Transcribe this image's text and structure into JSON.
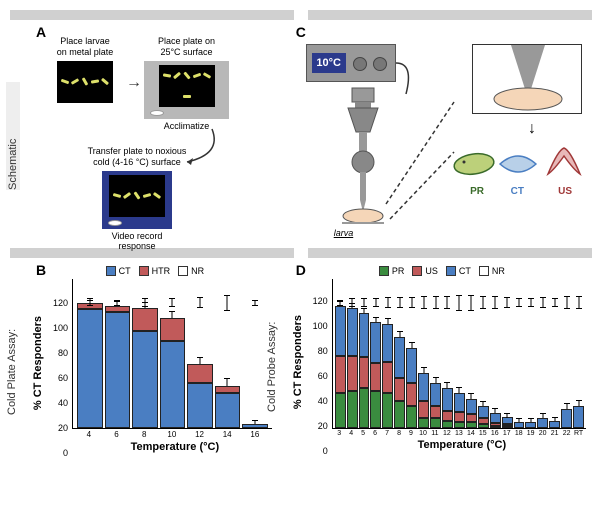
{
  "labels": {
    "schematic": "Schematic",
    "cold_plate_assay": "Cold Plate Assay:",
    "cold_probe_assay": "Cold Probe Assay:"
  },
  "panel_a": {
    "label": "A",
    "step1": "Place larvae\non metal plate",
    "step2": "Place plate on\n25°C surface",
    "acclimatize": "Acclimatize",
    "step3": "Transfer plate to noxious\ncold (4-16 °C) surface",
    "record": "Video record\nresponse"
  },
  "panel_c": {
    "label": "C",
    "display": "10°C",
    "larva_label": "larva",
    "pr": "PR",
    "ct": "CT",
    "us": "US"
  },
  "chart_b": {
    "label": "B",
    "legend": [
      {
        "name": "CT",
        "color": "#4a7ec2"
      },
      {
        "name": "HTR",
        "color": "#c15a5a"
      },
      {
        "name": "NR",
        "color": "#ffffff"
      }
    ],
    "y_label": "% CT Responders",
    "x_label": "Temperature (°C)",
    "ymax": 120,
    "yticks": [
      0,
      20,
      40,
      60,
      80,
      100,
      120
    ],
    "categories": [
      "4",
      "6",
      "8",
      "10",
      "12",
      "14",
      "16"
    ],
    "series": {
      "ct": [
        95,
        93,
        78,
        70,
        36,
        28,
        3
      ],
      "htr": [
        5,
        5,
        18,
        18,
        15,
        6,
        0
      ]
    },
    "err": [
      3,
      3,
      4,
      5,
      5,
      5,
      3
    ],
    "total_err_top": [
      100,
      100,
      100,
      100,
      100,
      100,
      100
    ],
    "total_err_v": [
      2,
      2,
      3,
      3,
      4,
      6,
      2
    ]
  },
  "chart_d": {
    "label": "D",
    "legend": [
      {
        "name": "PR",
        "color": "#3a8c3f"
      },
      {
        "name": "US",
        "color": "#c15a5a"
      },
      {
        "name": "CT",
        "color": "#4a7ec2"
      },
      {
        "name": "NR",
        "color": "#ffffff"
      }
    ],
    "y_label": "% CT Responders",
    "x_label": "Temperature (°C)",
    "ymax": 120,
    "yticks": [
      0,
      20,
      40,
      60,
      80,
      100,
      120
    ],
    "categories": [
      "3",
      "4",
      "5",
      "6",
      "7",
      "8",
      "9",
      "10",
      "11",
      "12",
      "13",
      "14",
      "15",
      "16",
      "17",
      "18",
      "19",
      "20",
      "21",
      "22",
      "RT"
    ],
    "series": {
      "pr": [
        28,
        30,
        32,
        30,
        28,
        22,
        18,
        8,
        8,
        6,
        5,
        5,
        3,
        2,
        1,
        0,
        0,
        0,
        0,
        0,
        0
      ],
      "us": [
        30,
        28,
        25,
        22,
        25,
        18,
        18,
        14,
        10,
        8,
        8,
        6,
        5,
        2,
        1,
        0,
        0,
        0,
        0,
        0,
        0
      ],
      "ct": [
        40,
        38,
        35,
        33,
        30,
        33,
        28,
        22,
        18,
        18,
        15,
        12,
        10,
        8,
        6,
        5,
        5,
        8,
        6,
        15,
        18
      ]
    },
    "err": [
      3,
      3,
      3,
      3,
      4,
      4,
      4,
      4,
      4,
      4,
      4,
      4,
      3,
      3,
      3,
      2,
      2,
      3,
      2,
      4,
      4
    ],
    "total_err_top": [
      100,
      100,
      100,
      100,
      100,
      100,
      100,
      100,
      100,
      100,
      100,
      100,
      100,
      100,
      100,
      100,
      100,
      100,
      100,
      100,
      100
    ],
    "total_err_v": [
      2,
      3,
      3,
      3,
      4,
      4,
      4,
      5,
      5,
      5,
      6,
      6,
      5,
      5,
      4,
      3,
      3,
      4,
      3,
      5,
      5
    ]
  },
  "colors": {
    "ct": "#4a7ec2",
    "pr": "#3a8c3f",
    "us": "#c15a5a",
    "htr": "#c15a5a"
  }
}
